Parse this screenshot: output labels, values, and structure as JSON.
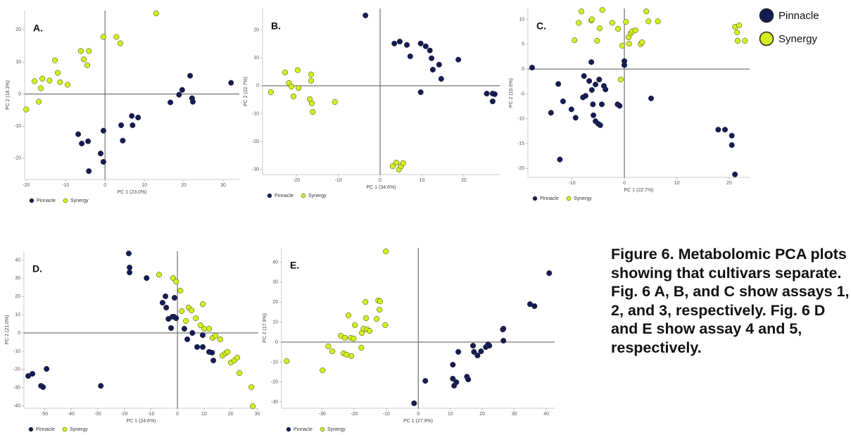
{
  "figure": {
    "caption": "Figure 6. Metabolomic PCA plots showing that cultivars separate. Fig. 6 A, B, and C show assays 1, 2, and 3, respectively. Fig. 6 D and E show assay 4 and 5, respectively.",
    "legend": [
      {
        "label": "Pinnacle",
        "color": "#141c55"
      },
      {
        "label": "Synergy",
        "color": "#d4f01c"
      }
    ]
  },
  "chart_data": [
    {
      "type": "scatter",
      "title": "A.",
      "x_label": "PC 1 (23.0%)",
      "y_label": "PC 2 (18.3%)",
      "xlim": [
        -20.4,
        34.1
      ],
      "ylim": [
        -26.6,
        26
      ],
      "xticks": [
        -20,
        -10,
        0,
        10,
        20,
        30
      ],
      "yticks": [
        -20,
        -10,
        0,
        10,
        20
      ],
      "zero_lines": true,
      "legend": "bottom-left",
      "series": [
        {
          "name": "Pinnacle",
          "color": "#141c55",
          "x": [
            -6.8,
            -5.9,
            -4.3,
            -4.1,
            -1.1,
            -0.4,
            -0.4,
            4.1,
            4.5,
            6.8,
            7.0,
            8.4,
            16.6,
            18.8,
            19.6,
            21.6,
            22.1,
            22.3,
            32.0
          ],
          "values": [
            -12.5,
            -15.4,
            -14.7,
            -24.0,
            -18.5,
            -21.1,
            -11.4,
            -9.7,
            -14.5,
            -6.8,
            -9.7,
            -7.3,
            -2.6,
            -0.2,
            1.3,
            5.7,
            -1.3,
            -2.4,
            3.5
          ]
        },
        {
          "name": "Synergy",
          "color": "#d4f01c",
          "x": [
            -20,
            -17.9,
            -16.8,
            -16.3,
            -15.9,
            -14.1,
            -12.7,
            -12.0,
            -11.4,
            -9.5,
            -6.1,
            -5.4,
            -4.5,
            -4.1,
            -0.4,
            2.9,
            3.9,
            13.0
          ],
          "values": [
            -4.8,
            4.0,
            -2.4,
            1.8,
            4.8,
            4.2,
            10.5,
            6.6,
            3.7,
            2.9,
            13.4,
            10.8,
            9.0,
            13.4,
            17.8,
            17.8,
            15.8,
            25.1
          ]
        }
      ]
    },
    {
      "type": "scatter",
      "title": "B.",
      "x_label": "PC 1 (34.6%)",
      "y_label": "PC 2 (22.7%)",
      "xlim": [
        -28.1,
        28.6
      ],
      "ylim": [
        -31.9,
        27.8
      ],
      "xticks": [
        -20,
        -10,
        0,
        10,
        20
      ],
      "yticks": [
        -30,
        -20,
        -10,
        0,
        10,
        20
      ],
      "zero_lines": true,
      "legend": "bottom-left",
      "series": [
        {
          "name": "Pinnacle",
          "color": "#141c55",
          "x": [
            -3.5,
            3.4,
            4.7,
            6.4,
            7.2,
            9.7,
            9.7,
            10.9,
            11.9,
            12.3,
            12.6,
            14.1,
            14.6,
            18.7,
            25.5,
            26.9,
            26.9,
            27.4
          ],
          "values": [
            25.3,
            15.2,
            15.9,
            14.7,
            10.6,
            15.2,
            -2.3,
            14.2,
            12.7,
            9.9,
            5.8,
            7.6,
            2.5,
            9.4,
            -2.8,
            -2.8,
            -5.6,
            -3.0
          ]
        },
        {
          "name": "Synergy",
          "color": "#d4f01c",
          "x": [
            -26.1,
            -22.7,
            -21.8,
            -21.2,
            -20.7,
            -19.7,
            -19.5,
            -16.8,
            -16.5,
            -16.5,
            -16.3,
            -16.1,
            -10.8,
            3.0,
            3.9,
            4.5,
            5.0,
            5.5
          ],
          "values": [
            -2.3,
            4.8,
            1.0,
            -0.3,
            -3.8,
            5.6,
            -0.8,
            -4.8,
            4.1,
            1.8,
            -6.3,
            -9.4,
            -5.8,
            -28.9,
            -27.6,
            -30.1,
            -28.9,
            -27.8
          ]
        }
      ]
    },
    {
      "type": "scatter",
      "title": "C.",
      "x_label": "PC 1 (22.7%)",
      "y_label": "PC 2 (15.0%)",
      "xlim": [
        -18.4,
        23.9
      ],
      "ylim": [
        -21.8,
        12.2
      ],
      "xticks": [
        -10,
        0,
        10,
        20
      ],
      "yticks": [
        -20,
        -15,
        -10,
        -5,
        0,
        5,
        10
      ],
      "zero_lines": true,
      "legend": "bottom-left",
      "series": [
        {
          "name": "Pinnacle",
          "color": "#141c55",
          "x": [
            -17.6,
            -14.0,
            -12.6,
            -12.3,
            -11.7,
            -10.1,
            -9.3,
            -7.9,
            -7.7,
            -7.4,
            -6.7,
            -6.3,
            -6.2,
            -6.0,
            -5.9,
            -5.5,
            -5.5,
            -5.0,
            -4.8,
            -4.6,
            -4.3,
            -3.9,
            -3.6,
            -1.3,
            -0.9,
            0,
            0,
            5.1,
            17.9,
            19.2,
            20.5,
            20.5,
            21.1
          ],
          "values": [
            0.3,
            -8.8,
            -3.0,
            -18.2,
            -6.5,
            -8.1,
            -9.8,
            -5.7,
            -1.4,
            -5.4,
            -2.4,
            1.4,
            -4.2,
            -7.1,
            -9.3,
            -3.1,
            -10.5,
            -11.0,
            -2.1,
            -11.3,
            -7.1,
            -3.4,
            -4.1,
            -7.1,
            -7.4,
            1.6,
            0.8,
            -5.9,
            -12.2,
            -12.2,
            -13.4,
            -15.3,
            -21.2
          ]
        },
        {
          "name": "Synergy",
          "color": "#d4f01c",
          "x": [
            -8.7,
            -8.2,
            -9.5,
            -6.3,
            -6.2,
            -5.2,
            -4.7,
            -4.2,
            -2.3,
            -1.2,
            -0.7,
            -0.4,
            0.3,
            0.8,
            0.9,
            1.2,
            1.5,
            2.1,
            3.1,
            3.4,
            4.2,
            4.6,
            6.4,
            21.1,
            21.5,
            21.9,
            21.6,
            23.0
          ],
          "values": [
            9.3,
            11.6,
            5.8,
            9.8,
            10.0,
            5.7,
            8.2,
            11.9,
            9.3,
            8.1,
            -2.1,
            4.7,
            9.5,
            6.4,
            5.1,
            7.2,
            7.6,
            7.8,
            5.0,
            5.4,
            11.6,
            9.6,
            9.6,
            8.5,
            7.4,
            8.8,
            5.7,
            5.7
          ]
        }
      ]
    },
    {
      "type": "scatter",
      "title": "D.",
      "x_label": "PC 1 (24.6%)",
      "y_label": "PC 2 (21.0%)",
      "xlim": [
        -57.7,
        30.4
      ],
      "ylim": [
        -41.3,
        44.8
      ],
      "xticks": [
        -50,
        -40,
        -30,
        -20,
        -10,
        0,
        10,
        20,
        30
      ],
      "yticks": [
        -40,
        -30,
        -20,
        -10,
        0,
        10,
        20,
        30,
        40
      ],
      "zero_lines": true,
      "legend": "bottom-left",
      "series": [
        {
          "name": "Pinnacle",
          "color": "#141c55",
          "x": [
            -56.1,
            -54.5,
            -51.3,
            -50.5,
            -49.2,
            -28.8,
            -18.3,
            -18.0,
            -18.0,
            -11.6,
            -5.6,
            -4.5,
            -4.2,
            -3.4,
            -2.4,
            -1.9,
            -1.3,
            -1.1,
            -0.5,
            2.6,
            3.7,
            5.6,
            7.4,
            9.5,
            9.5,
            11.9,
            13.0,
            13.5
          ],
          "values": [
            -23.6,
            -22.4,
            -29.0,
            -29.7,
            -19.7,
            -29.0,
            43.6,
            35.9,
            33.2,
            30.1,
            16.6,
            20.1,
            13.9,
            7.7,
            2.7,
            8.9,
            8.9,
            19.3,
            8.1,
            2.3,
            -3.5,
            0,
            -7.7,
            -7.7,
            -1.2,
            -10.4,
            -10.8,
            -15.1
          ]
        },
        {
          "name": "Synergy",
          "color": "#d4f01c",
          "x": [
            -6.9,
            -1.6,
            -0.5,
            1.1,
            1.6,
            3.2,
            4.2,
            5.3,
            6.9,
            8.7,
            9.5,
            10.1,
            11.9,
            13.2,
            14.3,
            16.1,
            16.9,
            18.0,
            18.8,
            20.1,
            21.4,
            22.5,
            23.3,
            27.8,
            28.3
          ],
          "values": [
            32.0,
            30.1,
            28.2,
            23.2,
            12.0,
            6.6,
            13.9,
            12.4,
            8.1,
            4.2,
            15.8,
            2.3,
            2.3,
            -2.7,
            -1.5,
            -3.5,
            -12.4,
            -11.2,
            -10.4,
            -16.2,
            -15.1,
            -13.5,
            -22.0,
            -29.7,
            -40.2
          ]
        }
      ]
    },
    {
      "type": "scatter",
      "title": "E.",
      "x_label": "PC 1 (27.9%)",
      "y_label": "PC 2 (17.9%)",
      "xlim": [
        -42.7,
        42.6
      ],
      "ylim": [
        -33.1,
        47.2
      ],
      "xticks": [
        -30,
        -20,
        -10,
        0,
        10,
        20,
        30,
        40
      ],
      "yticks": [
        -30,
        -20,
        -10,
        0,
        10,
        20,
        30,
        40
      ],
      "zero_lines": true,
      "legend": "bottom-left",
      "series": [
        {
          "name": "Pinnacle",
          "color": "#141c55",
          "x": [
            -1.3,
            2.2,
            10.8,
            10.8,
            11.2,
            11.9,
            12.5,
            15.2,
            15.6,
            17.1,
            17.4,
            18.5,
            19.6,
            21.1,
            21.8,
            22.2,
            26.4,
            26.6,
            26.6,
            34.9,
            36.3,
            40.9
          ],
          "values": [
            -30.6,
            -19.4,
            -11.3,
            -18.3,
            -21.8,
            -20.1,
            -4.9,
            -17.3,
            -18.7,
            -1.8,
            -4.9,
            -6.7,
            -4.6,
            -2.5,
            -1.1,
            -1.8,
            6.3,
            6.7,
            0.7,
            19.0,
            18.0,
            34.5
          ]
        },
        {
          "name": "Synergy",
          "color": "#d4f01c",
          "x": [
            -41.1,
            -29.9,
            -28.1,
            -26.8,
            -24.2,
            -23.3,
            -22.9,
            -22.4,
            -21.8,
            -21.1,
            -20.9,
            -20.2,
            -19.8,
            -17.8,
            -17.6,
            -17.1,
            -16.5,
            -16.3,
            -16.0,
            -15.2,
            -13.0,
            -12.5,
            -12.1,
            -11.9,
            -10.3,
            -10.1
          ],
          "values": [
            -9.5,
            -14.1,
            -2.1,
            -4.6,
            3.2,
            -5.6,
            2.1,
            -6.3,
            13.4,
            2.1,
            -7.0,
            1.8,
            8.5,
            -2.8,
            4.6,
            6.7,
            20.1,
            12.0,
            6.3,
            5.6,
            11.6,
            20.8,
            16.2,
            20.4,
            8.5,
            45.4
          ]
        }
      ]
    }
  ]
}
